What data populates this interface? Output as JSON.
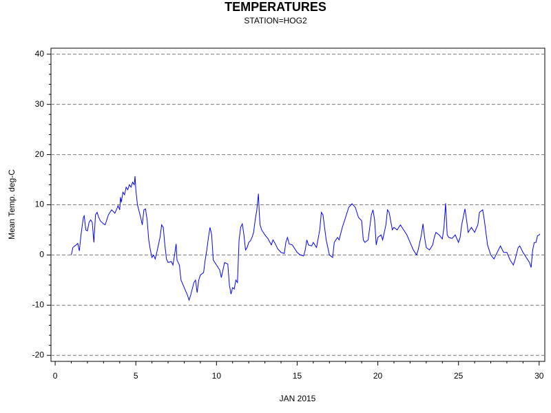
{
  "chart_data": {
    "type": "line",
    "title": "TEMPERATURES",
    "subtitle": "STATION=HOG2",
    "x_label": "JAN 2015",
    "y_label": "Mean Temp. deg-C",
    "xlim": [
      -0.26,
      30.35
    ],
    "ylim": [
      -21.2,
      41.2
    ],
    "xticks": [
      0,
      5,
      10,
      15,
      20,
      25,
      30
    ],
    "yticks": [
      -20,
      -10,
      0,
      10,
      20,
      30,
      40
    ],
    "xminorticks": [
      1,
      2,
      3,
      4,
      6,
      7,
      8,
      9,
      11,
      12,
      13,
      14,
      16,
      17,
      18,
      19,
      21,
      22,
      23,
      24,
      26,
      27,
      28,
      29
    ],
    "yminorticks": [
      -18,
      -16,
      -14,
      -12,
      -8,
      -6,
      -4,
      -2,
      2,
      4,
      6,
      8,
      12,
      14,
      16,
      18,
      22,
      24,
      26,
      28,
      32,
      34,
      36,
      38
    ],
    "grid": true,
    "series": [
      {
        "name": "Mean Temp. deg-C",
        "color": "#0000ff",
        "x": [
          1.0,
          1.1,
          1.3,
          1.4,
          1.5,
          1.6,
          1.75,
          1.8,
          1.9,
          2.0,
          2.1,
          2.2,
          2.3,
          2.4,
          2.5,
          2.6,
          2.7,
          2.8,
          3.0,
          3.1,
          3.3,
          3.5,
          3.7,
          3.9,
          4.0,
          4.05,
          4.1,
          4.2,
          4.3,
          4.4,
          4.5,
          4.6,
          4.7,
          4.8,
          4.9,
          4.95,
          5.0,
          5.1,
          5.3,
          5.4,
          5.5,
          5.6,
          5.7,
          5.8,
          5.9,
          6.0,
          6.1,
          6.2,
          6.3,
          6.5,
          6.6,
          6.7,
          6.8,
          6.9,
          7.0,
          7.2,
          7.3,
          7.4,
          7.5,
          7.55,
          7.7,
          7.8,
          8.0,
          8.2,
          8.3,
          8.4,
          8.6,
          8.7,
          8.8,
          8.9,
          9.0,
          9.2,
          9.3,
          9.4,
          9.5,
          9.6,
          9.7,
          9.8,
          10.0,
          10.2,
          10.3,
          10.5,
          10.7,
          10.8,
          10.9,
          11.0,
          11.1,
          11.2,
          11.3,
          11.4,
          11.5,
          11.6,
          11.7,
          11.8,
          11.9,
          12.0,
          12.1,
          12.2,
          12.3,
          12.4,
          12.5,
          12.6,
          12.65,
          12.7,
          12.8,
          13.0,
          13.2,
          13.4,
          13.5,
          13.6,
          13.8,
          14.0,
          14.2,
          14.3,
          14.4,
          14.5,
          14.7,
          15.0,
          15.2,
          15.4,
          15.5,
          15.6,
          15.7,
          15.9,
          16.0,
          16.2,
          16.4,
          16.5,
          16.6,
          16.8,
          17.0,
          17.2,
          17.3,
          17.5,
          17.6,
          17.8,
          18.0,
          18.2,
          18.4,
          18.6,
          18.8,
          19.0,
          19.1,
          19.2,
          19.4,
          19.6,
          19.7,
          19.8,
          19.9,
          20.0,
          20.2,
          20.3,
          20.5,
          20.6,
          20.7,
          20.9,
          21.0,
          21.2,
          21.4,
          21.6,
          21.8,
          22.0,
          22.2,
          22.4,
          22.5,
          22.7,
          22.8,
          22.9,
          23.0,
          23.2,
          23.4,
          23.5,
          23.6,
          23.8,
          24.0,
          24.1,
          24.2,
          24.3,
          24.4,
          24.6,
          24.8,
          25.0,
          25.1,
          25.2,
          25.4,
          25.5,
          25.6,
          25.8,
          26.0,
          26.2,
          26.3,
          26.5,
          26.6,
          26.8,
          27.0,
          27.2,
          27.4,
          27.6,
          27.8,
          28.0,
          28.2,
          28.4,
          28.5,
          28.7,
          28.8,
          29.0,
          29.2,
          29.4,
          29.5,
          29.6,
          29.7,
          29.8,
          29.9,
          30.0,
          30.05
        ],
        "values": [
          0.0,
          1.5,
          2.0,
          2.3,
          0.8,
          4.0,
          7.5,
          7.8,
          5.0,
          4.8,
          6.5,
          7.0,
          6.5,
          2.5,
          8.0,
          8.5,
          7.5,
          6.8,
          6.2,
          6.0,
          8.0,
          9.0,
          8.3,
          9.8,
          9.0,
          11.5,
          10.5,
          12.5,
          12.0,
          13.5,
          13.0,
          14.0,
          13.5,
          14.5,
          14.0,
          15.7,
          13.0,
          10.0,
          7.5,
          6.0,
          9.0,
          9.2,
          7.0,
          3.0,
          1.0,
          -0.5,
          0.0,
          -0.8,
          0.5,
          3.5,
          6.0,
          5.5,
          2.0,
          -0.8,
          -1.5,
          -1.3,
          -2.0,
          0.0,
          2.2,
          -1.0,
          -2.0,
          -5.0,
          -6.5,
          -8.0,
          -9.0,
          -8.0,
          -5.5,
          -5.0,
          -7.5,
          -5.0,
          -4.0,
          -3.5,
          -1.0,
          1.0,
          3.5,
          5.5,
          4.0,
          -1.0,
          -2.0,
          -3.0,
          -4.5,
          -1.5,
          -1.8,
          -6.0,
          -7.8,
          -6.5,
          -6.8,
          -5.0,
          -5.5,
          3.0,
          5.5,
          6.2,
          4.0,
          1.0,
          1.5,
          2.5,
          2.8,
          3.5,
          4.5,
          7.0,
          9.0,
          12.2,
          8.5,
          6.0,
          5.0,
          4.0,
          3.2,
          2.0,
          3.0,
          2.5,
          1.2,
          0.5,
          0.3,
          2.5,
          3.5,
          2.2,
          2.0,
          0.5,
          0.0,
          -0.2,
          1.0,
          3.0,
          2.0,
          1.8,
          2.5,
          1.5,
          5.0,
          8.5,
          8.0,
          3.0,
          0.0,
          -0.5,
          2.5,
          3.5,
          3.0,
          5.5,
          7.5,
          9.5,
          10.2,
          9.5,
          7.5,
          6.8,
          3.0,
          2.5,
          3.0,
          8.0,
          9.0,
          7.0,
          2.0,
          3.5,
          4.0,
          3.0,
          6.0,
          9.0,
          8.5,
          5.0,
          5.5,
          5.0,
          6.0,
          5.0,
          4.0,
          2.5,
          1.0,
          0.0,
          1.0,
          4.0,
          6.2,
          3.5,
          1.5,
          1.0,
          2.0,
          3.5,
          4.5,
          4.0,
          3.2,
          5.5,
          10.3,
          4.0,
          3.5,
          3.3,
          4.0,
          2.5,
          3.5,
          6.0,
          9.2,
          7.0,
          4.5,
          5.5,
          4.5,
          6.0,
          8.5,
          9.0,
          7.0,
          2.0,
          0.0,
          -0.8,
          0.5,
          1.8,
          0.5,
          0.5,
          -1.0,
          -2.0,
          -1.0,
          1.5,
          1.8,
          0.5,
          -0.5,
          -1.5,
          -2.5,
          1.0,
          2.5,
          2.5,
          3.8,
          4.0,
          4.2
        ]
      }
    ]
  }
}
